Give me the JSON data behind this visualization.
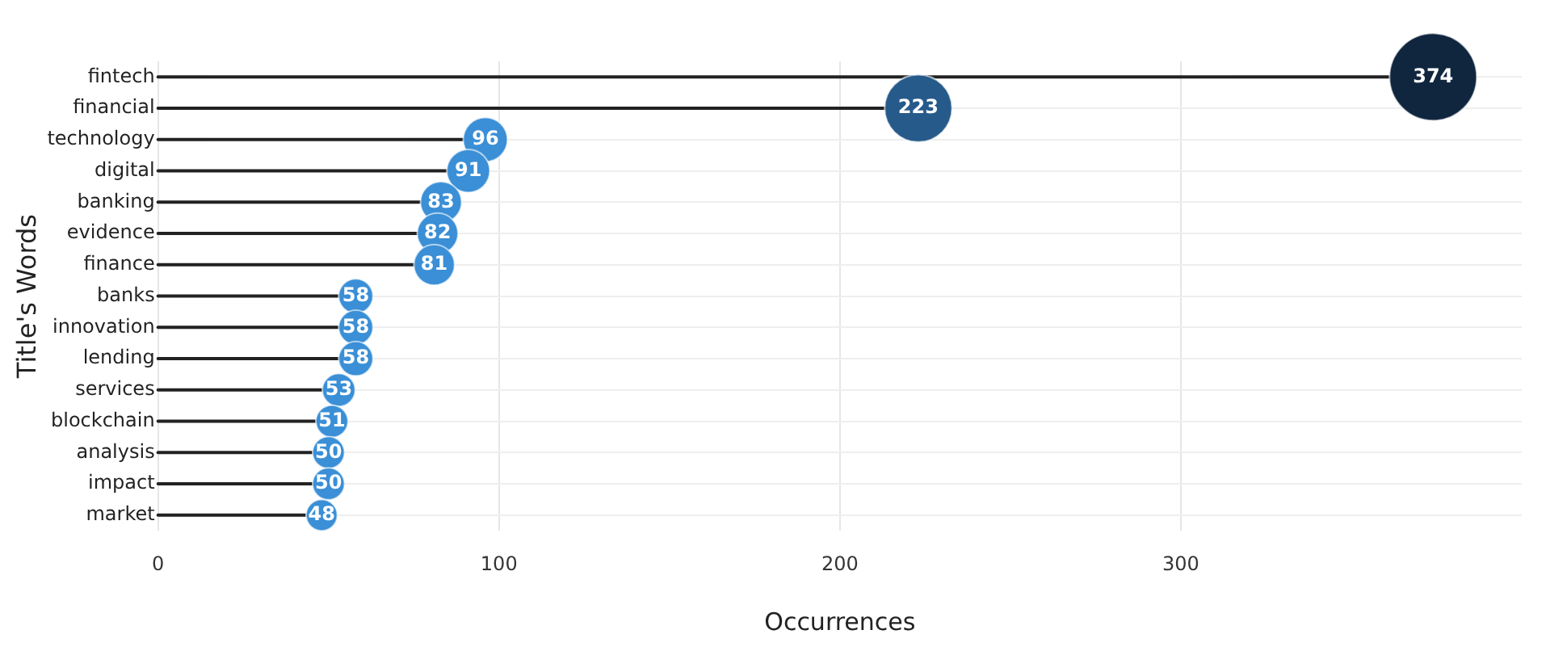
{
  "chart_data": {
    "type": "lollipop",
    "orientation": "horizontal",
    "xlabel": "Occurrences",
    "ylabel": "Title's Words",
    "categories": [
      "fintech",
      "financial",
      "technology",
      "digital",
      "banking",
      "evidence",
      "finance",
      "banks",
      "innovation",
      "lending",
      "services",
      "blockchain",
      "analysis",
      "impact",
      "market"
    ],
    "values": [
      374,
      223,
      96,
      91,
      83,
      82,
      81,
      58,
      58,
      58,
      53,
      51,
      50,
      50,
      48
    ],
    "sizes": [
      1,
      0.596,
      0.257,
      0.243,
      0.222,
      0.219,
      0.217,
      0.155,
      0.155,
      0.155,
      0.142,
      0.136,
      0.134,
      0.134,
      0.128
    ],
    "colors": [
      "#10263f",
      "#265a8a",
      "#3a8fd6",
      "#3a8fd6",
      "#3a8fd6",
      "#3a8fd6",
      "#3a8fd6",
      "#3a8fd6",
      "#3a8fd6",
      "#3a8fd6",
      "#3a8fd6",
      "#3a8fd6",
      "#3a8fd6",
      "#3a8fd6",
      "#3a8fd6"
    ],
    "xlim": [
      0,
      400
    ],
    "xticks": [
      0,
      100,
      200,
      300
    ],
    "grid": true,
    "legend": false,
    "data_labels": true
  }
}
